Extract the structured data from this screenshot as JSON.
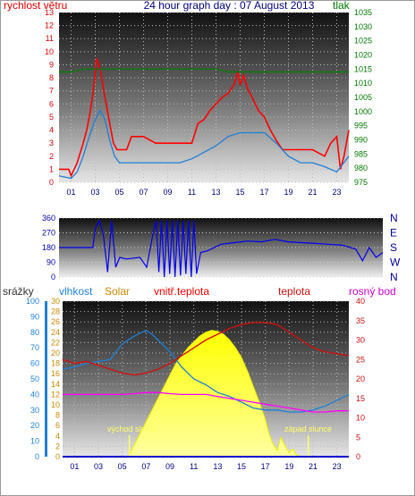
{
  "header": {
    "wind_label": "rychlost větru",
    "title": "24 hour graph day : 07 August 2013",
    "pressure_label": "tlak"
  },
  "colors": {
    "wind_gust": "#ff0000",
    "wind_avg": "#1e7fd8",
    "pressure": "#008000",
    "direction": "#0000ee",
    "humidity": "#1e7fd8",
    "solar": "#ffff00",
    "indoor_temp": "#ff0000",
    "temperature": "#cc1111",
    "dew_point": "#ff00ff",
    "rain": "#0000cc",
    "title_text": "#000080",
    "solar_label": "#cc8800"
  },
  "bottom_labels": {
    "rain": "srážky",
    "humidity": "vlhkost",
    "solar": "Solar",
    "indoor_temp": "vnitř.teplota",
    "temperature": "teplota",
    "dew_point": "rosný bod",
    "sunrise": "východ slunce",
    "sunset": "západ slunce"
  },
  "chart_data": [
    {
      "type": "line",
      "x_ticks": [
        "01",
        "03",
        "05",
        "07",
        "09",
        "11",
        "13",
        "15",
        "17",
        "19",
        "21",
        "23"
      ],
      "xlim": [
        0,
        24
      ],
      "left_axis": {
        "label": "rychlost větru",
        "ylim": [
          0,
          13
        ],
        "ticks": [
          0,
          1,
          2,
          3,
          4,
          5,
          6,
          7,
          8,
          9,
          10,
          11,
          12,
          13
        ]
      },
      "right_axis": {
        "label": "tlak",
        "ylim": [
          975,
          1035
        ],
        "ticks": [
          975,
          980,
          985,
          990,
          995,
          1000,
          1005,
          1010,
          1015,
          1020,
          1025,
          1030,
          1035
        ]
      },
      "series": [
        {
          "name": "wind_gust",
          "axis": "left",
          "x": [
            0,
            0.8,
            1.0,
            1.5,
            2.0,
            2.3,
            2.6,
            2.9,
            3.1,
            3.3,
            3.5,
            3.7,
            3.9,
            4.2,
            4.5,
            4.8,
            5.2,
            5.6,
            6.0,
            7.0,
            8.0,
            9.0,
            10.0,
            11.0,
            11.5,
            12.0,
            12.5,
            13.0,
            13.5,
            14.0,
            14.5,
            14.8,
            15.0,
            15.3,
            15.6,
            16.0,
            16.5,
            17.0,
            17.5,
            18.0,
            18.5,
            19.0,
            20.0,
            21.0,
            22.0,
            22.5,
            23.0,
            23.3,
            23.6,
            24.0
          ],
          "y": [
            1.0,
            1.0,
            0.5,
            1.5,
            3.0,
            4.0,
            5.5,
            7.5,
            9.5,
            9.0,
            8.2,
            7.0,
            6.0,
            4.5,
            3.0,
            2.5,
            2.5,
            2.5,
            3.5,
            3.5,
            3.0,
            3.0,
            3.0,
            3.0,
            4.5,
            4.8,
            5.5,
            6.0,
            6.5,
            6.8,
            7.5,
            8.5,
            7.5,
            8.2,
            7.2,
            6.5,
            5.5,
            5.0,
            4.0,
            3.2,
            2.5,
            2.5,
            2.5,
            2.5,
            2.0,
            3.0,
            3.5,
            1.0,
            2.0,
            4.0
          ]
        },
        {
          "name": "wind_avg",
          "axis": "left",
          "x": [
            0,
            1.0,
            1.5,
            2.0,
            2.5,
            3.0,
            3.4,
            3.8,
            4.2,
            4.6,
            5.0,
            6.0,
            7.0,
            8.0,
            9.0,
            10.0,
            11.0,
            12.0,
            13.0,
            14.0,
            15.0,
            16.0,
            17.0,
            18.0,
            19.0,
            20.0,
            21.0,
            22.0,
            23.0,
            24.0
          ],
          "y": [
            0.5,
            0.3,
            0.8,
            2.0,
            3.5,
            4.8,
            5.5,
            4.8,
            3.2,
            2.0,
            1.5,
            1.5,
            1.5,
            1.5,
            1.5,
            1.5,
            1.8,
            2.3,
            2.8,
            3.5,
            3.8,
            3.8,
            3.8,
            3.0,
            2.0,
            1.5,
            1.5,
            1.2,
            0.8,
            2.0
          ]
        },
        {
          "name": "pressure",
          "axis": "right",
          "x": [
            0,
            1,
            2,
            3,
            4,
            5,
            6,
            7,
            8,
            9,
            10,
            11,
            12,
            13,
            14,
            15,
            16,
            17,
            18,
            19,
            20,
            21,
            22,
            23,
            24
          ],
          "y": [
            1014,
            1014,
            1015,
            1015,
            1015,
            1015,
            1015,
            1015,
            1015,
            1015,
            1015,
            1015,
            1015,
            1015,
            1014,
            1014,
            1014,
            1014,
            1014,
            1014,
            1014,
            1014,
            1014,
            1014,
            1014
          ]
        }
      ]
    },
    {
      "type": "line",
      "xlim": [
        0,
        24
      ],
      "left_axis": {
        "ylim": [
          0,
          360
        ],
        "ticks": [
          0,
          90,
          180,
          270,
          360
        ]
      },
      "right_axis": {
        "ticks": [
          "N",
          "W",
          "S",
          "E",
          "N"
        ]
      },
      "series": [
        {
          "name": "wind_direction",
          "x": [
            0,
            1.5,
            2.5,
            2.7,
            3.0,
            3.3,
            3.6,
            3.9,
            4.2,
            4.5,
            5.0,
            6.0,
            6.5,
            7.0,
            7.2,
            7.4,
            7.6,
            7.8,
            8.0,
            8.2,
            8.4,
            8.6,
            8.8,
            9.0,
            9.2,
            9.4,
            9.6,
            9.8,
            10.0,
            10.2,
            10.5,
            11.0,
            12.0,
            13.0,
            14.0,
            15.0,
            16.0,
            17.0,
            18.0,
            19.0,
            20.0,
            21.0,
            22.0,
            22.5,
            23.0,
            23.5,
            24.0
          ],
          "y": [
            180,
            180,
            180,
            300,
            345,
            250,
            30,
            345,
            60,
            120,
            110,
            120,
            60,
            280,
            345,
            30,
            345,
            0,
            345,
            20,
            345,
            0,
            345,
            10,
            345,
            20,
            345,
            0,
            345,
            20,
            150,
            160,
            200,
            210,
            220,
            215,
            230,
            215,
            210,
            205,
            200,
            195,
            170,
            100,
            180,
            120,
            150
          ]
        }
      ]
    },
    {
      "type": "area",
      "x_ticks": [
        "01",
        "03",
        "05",
        "07",
        "09",
        "11",
        "13",
        "15",
        "17",
        "19",
        "21",
        "23"
      ],
      "xlim": [
        0,
        24
      ],
      "rain_axis": {
        "label": "srážky",
        "ylim": [
          0,
          100
        ],
        "ticks": [
          0,
          10,
          20,
          30,
          40,
          50,
          60,
          70,
          80,
          90,
          100
        ]
      },
      "humidity_axis": {
        "label": "vlhkost",
        "ylim": [
          0,
          30
        ],
        "ticks": [
          0,
          2,
          4,
          6,
          8,
          10,
          12,
          14,
          16,
          18,
          20,
          22,
          24,
          26,
          28,
          30
        ]
      },
      "right_axis": {
        "ylim": [
          0,
          40
        ],
        "ticks": [
          0,
          5,
          10,
          15,
          20,
          25,
          30,
          35,
          40
        ]
      },
      "series": [
        {
          "name": "solar",
          "axis": "right",
          "x": [
            5.5,
            6.5,
            7.5,
            8.5,
            9.5,
            10.5,
            11.5,
            12.0,
            12.5,
            13.0,
            13.5,
            14.0,
            14.5,
            15.0,
            15.5,
            16.0,
            16.5,
            17.0,
            17.3,
            17.6,
            18.0,
            18.3,
            18.6,
            19.0,
            19.3,
            19.6,
            20.0
          ],
          "y": [
            0,
            6,
            12,
            18,
            24,
            28,
            31,
            32,
            32.5,
            32.2,
            31.5,
            30,
            28,
            25.5,
            22,
            18,
            14,
            9.5,
            6,
            3.5,
            1.5,
            5,
            3,
            1,
            2,
            0.5,
            0
          ]
        },
        {
          "name": "humidity",
          "axis": "right",
          "x": [
            0,
            1,
            2,
            3,
            4,
            5,
            6,
            7,
            7.5,
            8,
            9,
            10,
            11,
            12,
            13,
            14,
            15,
            16,
            17,
            18,
            19,
            20,
            21,
            22,
            23,
            24
          ],
          "y": [
            22.5,
            23,
            24,
            24.5,
            25,
            29,
            31,
            32.5,
            31.5,
            30,
            27,
            23,
            20,
            18.5,
            16.5,
            15.5,
            14,
            12.5,
            12,
            12,
            11.5,
            11.5,
            12,
            13,
            14.5,
            16
          ]
        },
        {
          "name": "temperature",
          "axis": "right",
          "x": [
            0,
            1,
            2,
            3,
            4,
            5,
            6,
            7,
            8,
            9,
            10,
            11,
            12,
            13,
            14,
            15,
            16,
            17,
            18,
            19,
            20,
            21,
            22,
            23,
            24
          ],
          "y": [
            25,
            24,
            24.5,
            23.5,
            22.5,
            21.5,
            21,
            21.5,
            22.5,
            24,
            26,
            28,
            30,
            31.5,
            33,
            34,
            34.5,
            34.5,
            34,
            32,
            30,
            28,
            27,
            26.5,
            26
          ]
        },
        {
          "name": "dew_point",
          "axis": "right",
          "x": [
            0,
            1,
            2,
            3,
            4,
            5,
            6,
            7,
            8,
            9,
            10,
            11,
            12,
            13,
            14,
            15,
            16,
            17,
            18,
            19,
            20,
            21,
            22,
            23,
            24
          ],
          "y": [
            16,
            16,
            16,
            16,
            16,
            16,
            16.2,
            16.5,
            16.5,
            16.2,
            16,
            16,
            16,
            15.5,
            15,
            14.5,
            14,
            13.5,
            13,
            12.5,
            12,
            11.5,
            11.5,
            11.8,
            11.8
          ]
        },
        {
          "name": "rain",
          "axis": "rain",
          "x": [
            0,
            24
          ],
          "y": [
            0,
            0
          ]
        }
      ],
      "markers": [
        {
          "label": "východ slunce",
          "x": 5.6
        },
        {
          "label": "západ slunce",
          "x": 20.6
        }
      ]
    }
  ]
}
